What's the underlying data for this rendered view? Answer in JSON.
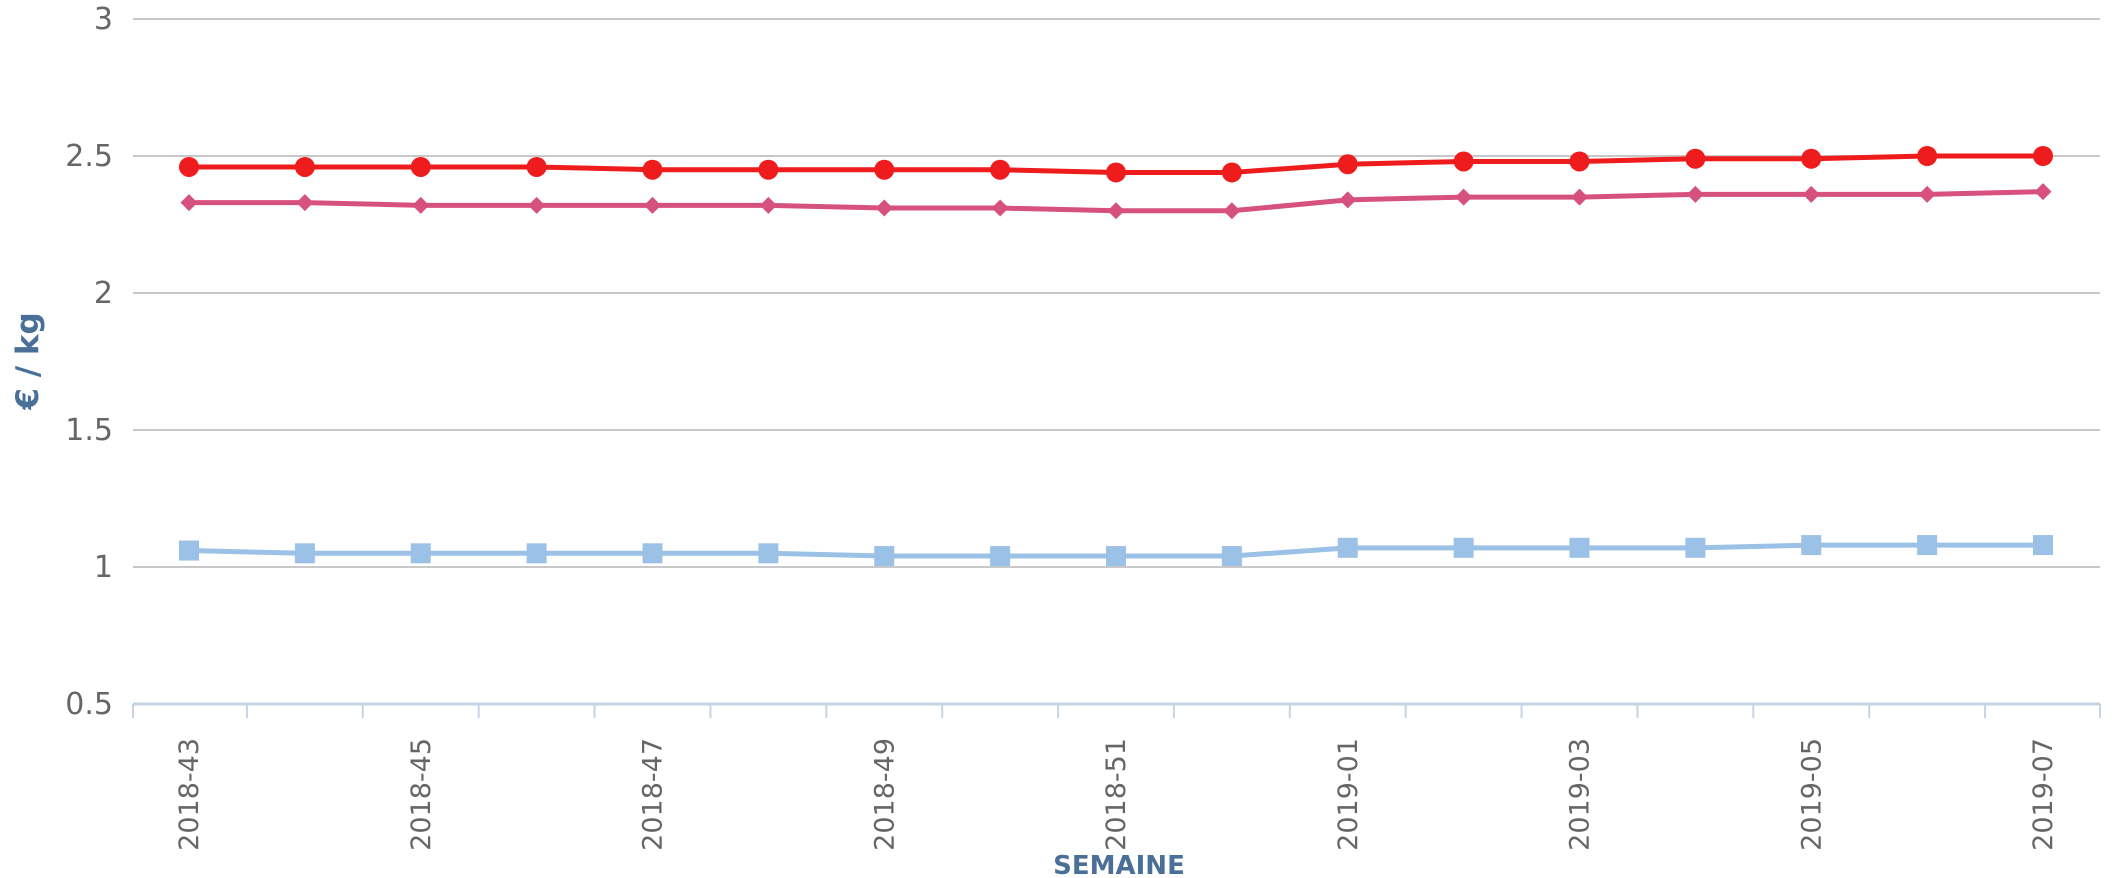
{
  "chart_data": {
    "type": "line",
    "title": "",
    "xlabel": "SEMAINE",
    "ylabel": "€ / kg",
    "ylim": [
      0.5,
      3
    ],
    "yticks": [
      "0.5",
      "1",
      "1.5",
      "2",
      "2.5",
      "3"
    ],
    "grid": true,
    "legend": "none",
    "categories": [
      "2018-43",
      "2018-44",
      "2018-45",
      "2018-46",
      "2018-47",
      "2018-48",
      "2018-49",
      "2018-50",
      "2018-51",
      "2018-52",
      "2019-01",
      "2019-02",
      "2019-03",
      "2019-04",
      "2019-05",
      "2019-06",
      "2019-07"
    ],
    "tick_labels": [
      "2018-43",
      "",
      "2018-45",
      "",
      "2018-47",
      "",
      "2018-49",
      "",
      "2018-51",
      "",
      "2019-01",
      "",
      "2019-03",
      "",
      "2019-05",
      "",
      "2019-07"
    ],
    "series": [
      {
        "color": "#ee1c1c",
        "marker": "circle",
        "values": [
          2.46,
          2.46,
          2.46,
          2.46,
          2.45,
          2.45,
          2.45,
          2.45,
          2.44,
          2.44,
          2.47,
          2.48,
          2.48,
          2.49,
          2.49,
          2.5,
          2.5
        ]
      },
      {
        "color": "#d6517d",
        "marker": "diamond",
        "values": [
          2.33,
          2.33,
          2.32,
          2.32,
          2.32,
          2.32,
          2.31,
          2.31,
          2.3,
          2.3,
          2.34,
          2.35,
          2.35,
          2.36,
          2.36,
          2.36,
          2.37
        ]
      },
      {
        "color": "#9cc1e6",
        "marker": "square",
        "values": [
          1.06,
          1.05,
          1.05,
          1.05,
          1.05,
          1.05,
          1.04,
          1.04,
          1.04,
          1.04,
          1.07,
          1.07,
          1.07,
          1.07,
          1.08,
          1.08,
          1.08
        ]
      }
    ]
  }
}
